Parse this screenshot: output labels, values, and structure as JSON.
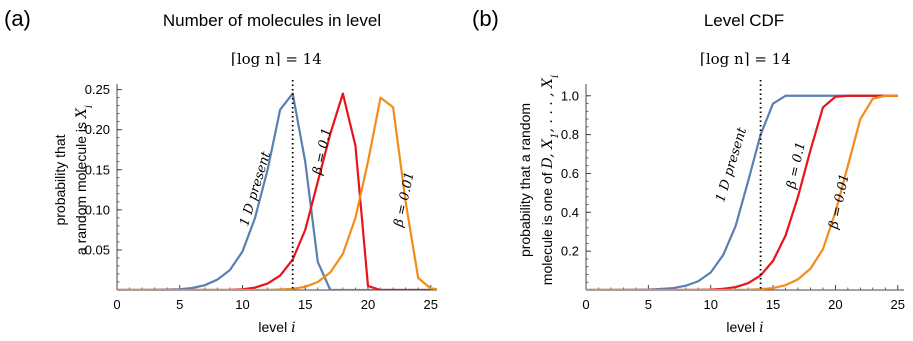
{
  "colors": {
    "blue": "#5b7fb2",
    "red": "#e8141a",
    "orange": "#f28c1a",
    "axis": "#444444"
  },
  "chart_data": [
    {
      "type": "line",
      "panel": "(a)",
      "title": "Number of molecules in level",
      "xlabel_text": "level ",
      "xlabel_var": "i",
      "ylabel_line1": "probability that",
      "ylabel_line2": "a random molecule is ",
      "ylabel_var": "X",
      "ylabel_sub": "i",
      "xlim": [
        0,
        25.5
      ],
      "ylim": [
        0,
        0.252
      ],
      "xticks": [
        0,
        5,
        10,
        15,
        20,
        25
      ],
      "xtick_labels": [
        "0",
        "5",
        "10",
        "15",
        "20",
        "25"
      ],
      "yticks": [
        0.05,
        0.1,
        0.15,
        0.2,
        0.25
      ],
      "ytick_labels": [
        "0.05",
        "0.10",
        "0.15",
        "0.20",
        "0.25"
      ],
      "refline": {
        "x": 14,
        "label": "⌈log n⌉ = 14"
      },
      "series": [
        {
          "color_key": "blue",
          "annotation": "1 D present",
          "x": [
            0,
            1,
            2,
            3,
            4,
            5,
            6,
            7,
            8,
            9,
            10,
            11,
            12,
            13,
            14,
            15,
            16,
            17,
            18,
            19,
            20,
            21,
            22,
            23,
            24,
            25
          ],
          "y": [
            0,
            0,
            0,
            0.0002,
            0.0005,
            0.001,
            0.0025,
            0.006,
            0.013,
            0.025,
            0.048,
            0.09,
            0.15,
            0.225,
            0.245,
            0.16,
            0.035,
            0,
            0,
            0,
            0,
            0,
            0,
            0,
            0,
            0
          ]
        },
        {
          "color_key": "red",
          "annotation": "β = 0.1",
          "x": [
            0,
            1,
            2,
            3,
            4,
            5,
            6,
            7,
            8,
            9,
            10,
            11,
            12,
            13,
            14,
            15,
            16,
            17,
            18,
            19,
            20,
            21,
            22,
            23,
            24,
            25
          ],
          "y": [
            0,
            0,
            0,
            0,
            0,
            0,
            0,
            0,
            0,
            0.0002,
            0.0008,
            0.003,
            0.008,
            0.018,
            0.038,
            0.075,
            0.135,
            0.195,
            0.245,
            0.18,
            0.005,
            0,
            0,
            0,
            0,
            0
          ]
        },
        {
          "color_key": "orange",
          "annotation": "β = 0.01",
          "x": [
            0,
            1,
            2,
            3,
            4,
            5,
            6,
            7,
            8,
            9,
            10,
            11,
            12,
            13,
            14,
            15,
            16,
            17,
            18,
            19,
            20,
            21,
            22,
            23,
            24,
            25,
            26
          ],
          "y": [
            0,
            0,
            0,
            0,
            0,
            0,
            0,
            0,
            0,
            0,
            0,
            0,
            0.0002,
            0.0006,
            0.0015,
            0.004,
            0.01,
            0.022,
            0.045,
            0.09,
            0.16,
            0.24,
            0.228,
            0.11,
            0.015,
            0.002,
            0
          ]
        }
      ]
    },
    {
      "type": "line",
      "panel": "(b)",
      "title": "Level CDF",
      "xlabel_text": "level ",
      "xlabel_var": "i",
      "ylabel_line1": "probability that a random",
      "ylabel_line2": "molecule is one of ",
      "ylabel_var": "D, X",
      "ylabel_sub": "1",
      "ylabel_tail": ", . . . , X",
      "ylabel_sub2": "i",
      "xlim": [
        0,
        25.5
      ],
      "ylim": [
        0,
        1.04
      ],
      "xticks": [
        0,
        5,
        10,
        15,
        20,
        25
      ],
      "xtick_labels": [
        "0",
        "5",
        "10",
        "15",
        "20",
        "25"
      ],
      "yticks": [
        0.2,
        0.4,
        0.6,
        0.8,
        1.0
      ],
      "ytick_labels": [
        "0.2",
        "0.4",
        "0.6",
        "0.8",
        "1.0"
      ],
      "refline": {
        "x": 14,
        "label": "⌈log n⌉ = 14"
      },
      "series": [
        {
          "color_key": "blue",
          "annotation": "1 D present",
          "x": [
            0,
            1,
            2,
            3,
            4,
            5,
            6,
            7,
            8,
            9,
            10,
            11,
            12,
            13,
            14,
            15,
            16,
            17,
            18,
            19,
            20,
            21,
            22,
            23,
            24,
            25
          ],
          "y": [
            0,
            0,
            0,
            0.0005,
            0.001,
            0.002,
            0.005,
            0.01,
            0.022,
            0.045,
            0.09,
            0.18,
            0.33,
            0.56,
            0.8,
            0.96,
            1,
            1,
            1,
            1,
            1,
            1,
            1,
            1,
            1,
            1
          ]
        },
        {
          "color_key": "red",
          "annotation": "β = 0.1",
          "x": [
            0,
            1,
            2,
            3,
            4,
            5,
            6,
            7,
            8,
            9,
            10,
            11,
            12,
            13,
            14,
            15,
            16,
            17,
            18,
            19,
            20,
            21,
            22,
            23,
            24,
            25
          ],
          "y": [
            0,
            0,
            0,
            0,
            0,
            0,
            0,
            0,
            0,
            0.0005,
            0.002,
            0.006,
            0.015,
            0.035,
            0.075,
            0.15,
            0.28,
            0.48,
            0.72,
            0.94,
            0.995,
            1,
            1,
            1,
            1,
            1
          ]
        },
        {
          "color_key": "orange",
          "annotation": "β = 0.01",
          "x": [
            0,
            1,
            2,
            3,
            4,
            5,
            6,
            7,
            8,
            9,
            10,
            11,
            12,
            13,
            14,
            15,
            16,
            17,
            18,
            19,
            20,
            21,
            22,
            23,
            24,
            25
          ],
          "y": [
            0,
            0,
            0,
            0,
            0,
            0,
            0,
            0,
            0,
            0,
            0,
            0,
            0.0005,
            0.0015,
            0.004,
            0.01,
            0.025,
            0.055,
            0.11,
            0.21,
            0.4,
            0.64,
            0.88,
            0.985,
            1,
            1
          ]
        }
      ]
    }
  ]
}
